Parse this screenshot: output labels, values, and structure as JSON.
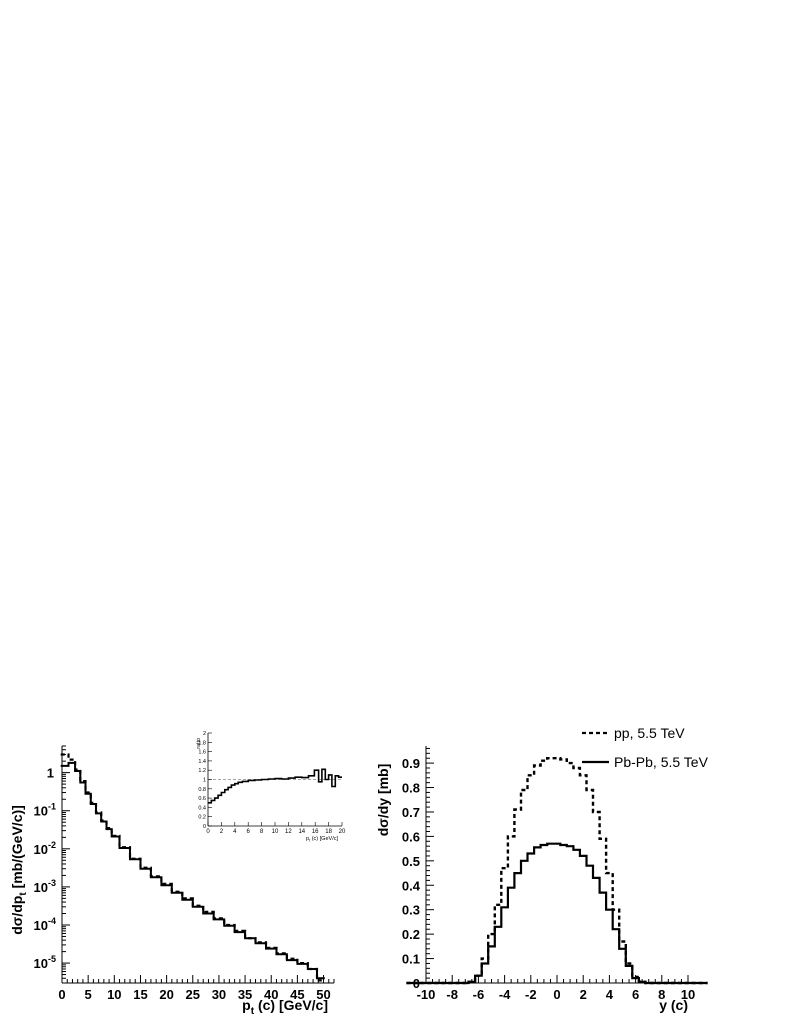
{
  "chart_data": [
    {
      "type": "line",
      "xlabel": "p_t (c) [GeV/c]",
      "ylabel": "dσ/dp_t [mb/(GeV/c)]",
      "xlim": [
        0,
        52
      ],
      "ylim": [
        3e-06,
        5
      ],
      "yscale": "log",
      "xticks": [
        0,
        5,
        10,
        15,
        20,
        25,
        30,
        35,
        40,
        45,
        50
      ],
      "ytick_labels": [
        {
          "base": "",
          "exp": "",
          "text": "1",
          "value": 1
        },
        {
          "base": "10",
          "exp": "-1",
          "value": 0.1
        },
        {
          "base": "10",
          "exp": "-2",
          "value": 0.01
        },
        {
          "base": "10",
          "exp": "-3",
          "value": 0.001
        },
        {
          "base": "10",
          "exp": "-4",
          "value": 0.0001
        },
        {
          "base": "10",
          "exp": "-5",
          "value": 1e-05
        }
      ],
      "series": [
        {
          "style": "dashed",
          "x": [
            0.5,
            2,
            3,
            4,
            5,
            6,
            7,
            8,
            9,
            10,
            12,
            14,
            16,
            18,
            20,
            22,
            24,
            26,
            28,
            30,
            32,
            34,
            36,
            38,
            40,
            42,
            44,
            46,
            48,
            49.5
          ],
          "y": [
            3.0,
            2.2,
            1.2,
            0.6,
            0.3,
            0.16,
            0.09,
            0.055,
            0.035,
            0.022,
            0.011,
            0.0055,
            0.0032,
            0.0019,
            0.0012,
            0.00075,
            0.0005,
            0.00032,
            0.00022,
            0.00015,
            0.0001,
            7e-05,
            4.5e-05,
            3.5e-05,
            2.5e-05,
            1.8e-05,
            1.3e-05,
            1e-05,
            7e-06,
            3.5e-06
          ]
        },
        {
          "style": "solid",
          "x": [
            0.5,
            2,
            3,
            4,
            5,
            6,
            7,
            8,
            9,
            10,
            12,
            14,
            16,
            18,
            20,
            22,
            24,
            26,
            28,
            30,
            32,
            34,
            36,
            38,
            40,
            42,
            44,
            46,
            48,
            49.5
          ],
          "y": [
            1.5,
            1.8,
            1.1,
            0.55,
            0.28,
            0.15,
            0.085,
            0.052,
            0.033,
            0.021,
            0.0105,
            0.0053,
            0.003,
            0.0018,
            0.0011,
            0.0007,
            0.00046,
            0.0003,
            0.0002,
            0.00014,
            9.5e-05,
            6.5e-05,
            4.5e-05,
            3.3e-05,
            2.4e-05,
            1.7e-05,
            1.2e-05,
            9.5e-06,
            7e-06,
            4e-06
          ]
        }
      ]
    },
    {
      "type": "line",
      "ylabel": "ratio",
      "xlabel": "p_t (c) [GeV/c]",
      "xlim": [
        0,
        20
      ],
      "ylim": [
        0,
        2
      ],
      "xticks": [
        0,
        2,
        4,
        6,
        8,
        10,
        12,
        14,
        16,
        18,
        20
      ],
      "yticks": [
        "0",
        "0.2",
        "0.4",
        "0.6",
        "0.8",
        "1",
        "1.2",
        "1.4",
        "1.6",
        "1.8",
        "2"
      ],
      "reference_line": 1,
      "series": [
        {
          "style": "solid",
          "x": [
            0.25,
            0.75,
            1.25,
            1.75,
            2.25,
            2.75,
            3.25,
            3.75,
            4.25,
            4.75,
            5.5,
            6.5,
            7.5,
            8.5,
            9.5,
            10.5,
            11.5,
            12.5,
            13.5,
            14.5,
            15.5,
            16.25,
            16.75,
            17.25,
            17.75,
            18.25,
            18.75,
            19.25,
            19.75
          ],
          "y": [
            0.5,
            0.55,
            0.6,
            0.66,
            0.72,
            0.78,
            0.83,
            0.88,
            0.91,
            0.94,
            0.96,
            0.98,
            0.99,
            1.0,
            1.01,
            1.02,
            1.01,
            1.03,
            1.05,
            1.04,
            1.08,
            1.2,
            0.95,
            1.22,
            1.0,
            1.1,
            0.85,
            1.08,
            1.05
          ]
        }
      ]
    },
    {
      "type": "line",
      "xlabel": "y (c)",
      "ylabel": "dσ/dy [mb]",
      "xlim": [
        -10,
        10
      ],
      "ylim": [
        0,
        0.97
      ],
      "xticks": [
        "-10",
        "-8",
        "-6",
        "-4",
        "-2",
        "0",
        "2",
        "4",
        "6",
        "8",
        "10"
      ],
      "yticks": [
        "0",
        "0.1",
        "0.2",
        "0.3",
        "0.4",
        "0.5",
        "0.6",
        "0.7",
        "0.8",
        "0.9"
      ],
      "series": [
        {
          "name": "pp, 5.5 TeV",
          "style": "dashed",
          "x": [
            -10,
            -7,
            -6.5,
            -6,
            -5.5,
            -5,
            -4.5,
            -4,
            -3.5,
            -3,
            -2.5,
            -2,
            -1.5,
            -1,
            -0.5,
            0,
            0.5,
            1,
            1.5,
            2,
            2.5,
            3,
            3.5,
            4,
            4.5,
            5,
            5.5,
            6,
            6.5,
            7,
            10
          ],
          "y": [
            0,
            0,
            0.005,
            0.03,
            0.1,
            0.2,
            0.32,
            0.47,
            0.6,
            0.71,
            0.79,
            0.85,
            0.89,
            0.91,
            0.92,
            0.92,
            0.915,
            0.9,
            0.88,
            0.85,
            0.79,
            0.7,
            0.59,
            0.45,
            0.3,
            0.17,
            0.08,
            0.025,
            0.005,
            0,
            0
          ]
        },
        {
          "name": "Pb-Pb, 5.5 TeV",
          "style": "solid",
          "x": [
            -10,
            -7,
            -6.5,
            -6,
            -5.5,
            -5,
            -4.5,
            -4,
            -3.5,
            -3,
            -2.5,
            -2,
            -1.5,
            -1,
            -0.5,
            0,
            0.5,
            1,
            1.5,
            2,
            2.5,
            3,
            3.5,
            4,
            4.5,
            5,
            5.5,
            6,
            6.5,
            7,
            10
          ],
          "y": [
            0,
            0,
            0.005,
            0.03,
            0.08,
            0.15,
            0.23,
            0.31,
            0.39,
            0.45,
            0.5,
            0.53,
            0.555,
            0.565,
            0.57,
            0.57,
            0.565,
            0.56,
            0.545,
            0.52,
            0.48,
            0.43,
            0.37,
            0.3,
            0.22,
            0.14,
            0.07,
            0.02,
            0.005,
            0,
            0
          ]
        }
      ]
    }
  ]
}
